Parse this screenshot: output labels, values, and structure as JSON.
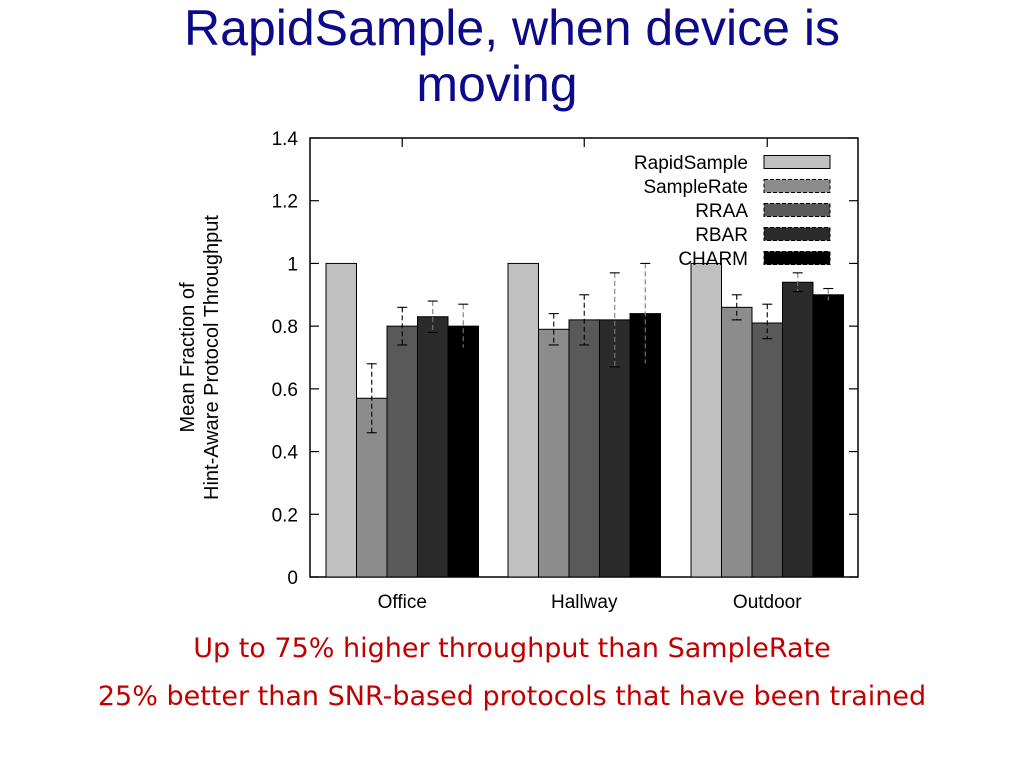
{
  "slide": {
    "title_line1": "RapidSample, when device is",
    "title_line2": "moving",
    "caption1": "Up to 75% higher throughput than SampleRate",
    "caption2": "25% better than SNR-based protocols that have been trained"
  },
  "chart_data": {
    "type": "bar",
    "categories": [
      "Office",
      "Hallway",
      "Outdoor"
    ],
    "ylabel_line1": "Mean Fraction of",
    "ylabel_line2": "Hint-Aware Protocol Throughput",
    "ylim": [
      0,
      1.4
    ],
    "yticks": [
      "0",
      "0.2",
      "0.4",
      "0.6",
      "0.8",
      "1",
      "1.2",
      "1.4"
    ],
    "legend_position": "top-right",
    "grid": false,
    "series": [
      {
        "name": "RapidSample",
        "color": "#c0c0c0",
        "values": [
          1.0,
          1.0,
          1.0
        ],
        "err_low": [
          1.0,
          1.0,
          1.0
        ],
        "err_high": [
          1.0,
          1.0,
          1.0
        ]
      },
      {
        "name": "SampleRate",
        "color": "#8c8c8c",
        "values": [
          0.57,
          0.79,
          0.86
        ],
        "err_low": [
          0.46,
          0.74,
          0.82
        ],
        "err_high": [
          0.68,
          0.84,
          0.9
        ]
      },
      {
        "name": "RRAA",
        "color": "#595959",
        "values": [
          0.8,
          0.82,
          0.81
        ],
        "err_low": [
          0.74,
          0.74,
          0.76
        ],
        "err_high": [
          0.86,
          0.9,
          0.87
        ]
      },
      {
        "name": "RBAR",
        "color": "#2b2b2b",
        "values": [
          0.83,
          0.82,
          0.94
        ],
        "err_low": [
          0.78,
          0.67,
          0.91
        ],
        "err_high": [
          0.88,
          0.97,
          0.97
        ]
      },
      {
        "name": "CHARM",
        "color": "#000000",
        "values": [
          0.8,
          0.84,
          0.9
        ],
        "err_low": [
          0.73,
          0.68,
          0.88
        ],
        "err_high": [
          0.87,
          1.0,
          0.92
        ]
      }
    ]
  }
}
